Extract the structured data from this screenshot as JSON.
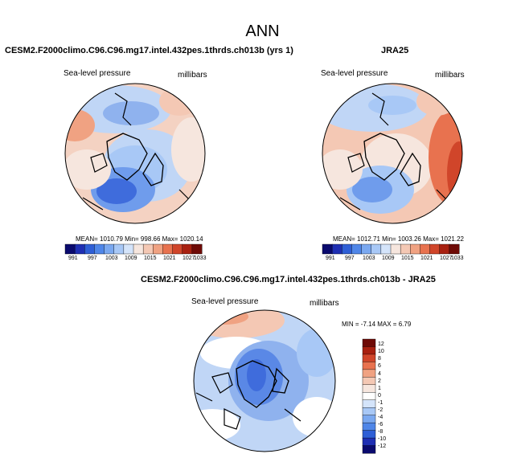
{
  "figure": {
    "title": "ANN",
    "panels": [
      {
        "heading": "CESM2.F2000climo.C96.C96.mg17.intel.432pes.1thrds.ch013b (yrs 1)",
        "variable": "Sea-level pressure",
        "units": "millibars",
        "stats": "MEAN= 1010.79   Min= 998.66   Max= 1020.14",
        "colorbar_ticks": [
          "991",
          "997",
          "1003",
          "1009",
          "1015",
          "1021",
          "1027",
          "1033"
        ]
      },
      {
        "heading": "JRA25",
        "variable": "Sea-level pressure",
        "units": "millibars",
        "stats": "MEAN= 1012.71   Min= 1003.26   Max= 1021.22",
        "colorbar_ticks": [
          "991",
          "997",
          "1003",
          "1009",
          "1015",
          "1021",
          "1027",
          "1033"
        ]
      }
    ],
    "difference": {
      "heading": "CESM2.F2000climo.C96.C96.mg17.intel.432pes.1thrds.ch013b - JRA25",
      "variable": "Sea-level pressure",
      "units": "millibars",
      "stats": "MIN =  -7.14   MAX =   6.79",
      "colorbar_ticks": [
        "12",
        "10",
        "8",
        "6",
        "4",
        "2",
        "1",
        "0",
        "-1",
        "-2",
        "-4",
        "-6",
        "-8",
        "-10",
        "-12"
      ]
    }
  },
  "colors": {
    "abs_scale": [
      "#0a0a6e",
      "#1f2fb3",
      "#2f5fd6",
      "#4f86e8",
      "#7aa8f0",
      "#a8c8f6",
      "#d4e4fa",
      "#f6e6de",
      "#f4c8b4",
      "#f0a282",
      "#e8724f",
      "#d0452a",
      "#a82010",
      "#6e0a06"
    ],
    "diff_scale": [
      "#6e0a06",
      "#a82010",
      "#d0452a",
      "#e8724f",
      "#f0a282",
      "#f4c8b4",
      "#f6e6de",
      "#ffffff",
      "#d4e4fa",
      "#a8c8f6",
      "#7aa8f0",
      "#4f86e8",
      "#2f5fd6",
      "#1f2fb3",
      "#0a0a6e"
    ]
  }
}
